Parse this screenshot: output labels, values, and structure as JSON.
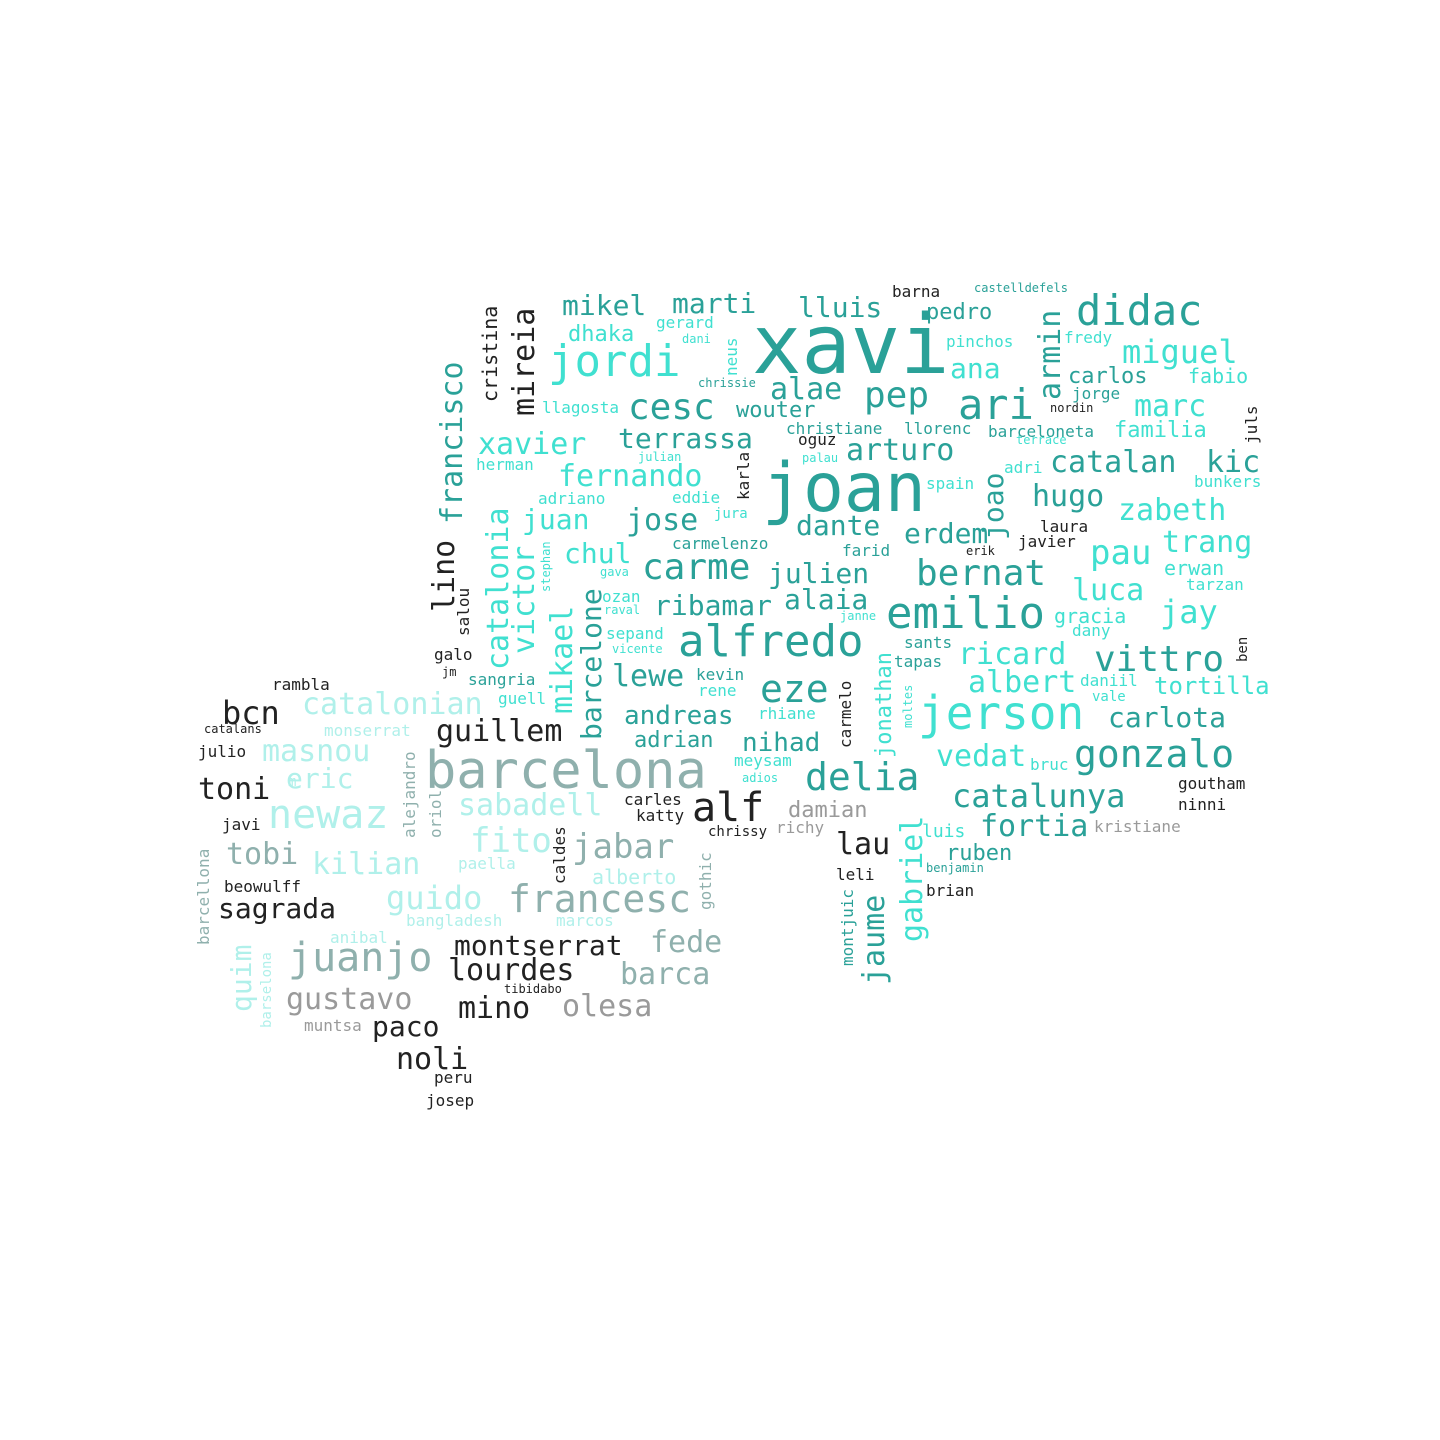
{
  "palette": {
    "teal": "#2aa198",
    "turquoise": "#40e0d0",
    "light_cyan": "#b0f0ea",
    "grey_teal": "#8fb0ad",
    "grey": "#9a9a9a",
    "dark": "#222222"
  },
  "words": [
    {
      "text": "xavi",
      "color": "#2aa198",
      "weight": "big"
    },
    {
      "text": "joan",
      "color": "#2aa198",
      "weight": "big"
    },
    {
      "text": "barcelona",
      "color": "#8fb0ad",
      "weight": "big"
    },
    {
      "text": "jerson",
      "color": "#40e0d0"
    },
    {
      "text": "alfredo",
      "color": "#2aa198"
    },
    {
      "text": "emilio",
      "color": "#2aa198"
    },
    {
      "text": "jordi",
      "color": "#40e0d0"
    },
    {
      "text": "didac",
      "color": "#2aa198"
    },
    {
      "text": "ari",
      "color": "#2aa198"
    },
    {
      "text": "newaz",
      "color": "#b0f0ea"
    },
    {
      "text": "juanjo",
      "color": "#8fb0ad"
    },
    {
      "text": "francesc",
      "color": "#8fb0ad"
    },
    {
      "text": "gonzalo",
      "color": "#2aa198"
    },
    {
      "text": "delia",
      "color": "#2aa198"
    },
    {
      "text": "alf",
      "color": "#222222"
    },
    {
      "text": "eze",
      "color": "#2aa198"
    },
    {
      "text": "vittro",
      "color": "#2aa198"
    },
    {
      "text": "bernat",
      "color": "#2aa198"
    },
    {
      "text": "carme",
      "color": "#2aa198"
    },
    {
      "text": "cesc",
      "color": "#2aa198"
    },
    {
      "text": "pep",
      "color": "#2aa198"
    },
    {
      "text": "catalunya",
      "color": "#2aa198"
    },
    {
      "text": "jabar",
      "color": "#8fb0ad"
    },
    {
      "text": "fito",
      "color": "#b0f0ea"
    },
    {
      "text": "guido",
      "color": "#b0f0ea"
    },
    {
      "text": "kilian",
      "color": "#b0f0ea"
    },
    {
      "text": "tobi",
      "color": "#8fb0ad"
    },
    {
      "text": "gustavo",
      "color": "#9a9a9a"
    },
    {
      "text": "mino",
      "color": "#222222"
    },
    {
      "text": "olesa",
      "color": "#9a9a9a"
    },
    {
      "text": "noli",
      "color": "#222222"
    },
    {
      "text": "lourdes",
      "color": "#222222"
    },
    {
      "text": "barca",
      "color": "#8fb0ad"
    },
    {
      "text": "fede",
      "color": "#8fb0ad"
    },
    {
      "text": "montserrat",
      "color": "#222222"
    },
    {
      "text": "sagrada",
      "color": "#222222"
    },
    {
      "text": "paco",
      "color": "#222222"
    },
    {
      "text": "quim",
      "color": "#b0f0ea",
      "vertical": true
    },
    {
      "text": "sabadell",
      "color": "#b0f0ea"
    },
    {
      "text": "eric",
      "color": "#b0f0ea"
    },
    {
      "text": "masnou",
      "color": "#b0f0ea"
    },
    {
      "text": "catalonian",
      "color": "#b0f0ea"
    },
    {
      "text": "guillem",
      "color": "#222222"
    },
    {
      "text": "bcn",
      "color": "#222222"
    },
    {
      "text": "toni",
      "color": "#222222"
    },
    {
      "text": "fernando",
      "color": "#40e0d0"
    },
    {
      "text": "xavier",
      "color": "#40e0d0"
    },
    {
      "text": "terrassa",
      "color": "#2aa198"
    },
    {
      "text": "mikel",
      "color": "#2aa198"
    },
    {
      "text": "marti",
      "color": "#2aa198"
    },
    {
      "text": "lluis",
      "color": "#2aa198"
    },
    {
      "text": "jose",
      "color": "#2aa198"
    },
    {
      "text": "juan",
      "color": "#40e0d0"
    },
    {
      "text": "chul",
      "color": "#40e0d0"
    },
    {
      "text": "julien",
      "color": "#2aa198"
    },
    {
      "text": "dante",
      "color": "#2aa198"
    },
    {
      "text": "erdem",
      "color": "#2aa198"
    },
    {
      "text": "arturo",
      "color": "#2aa198"
    },
    {
      "text": "alae",
      "color": "#2aa198"
    },
    {
      "text": "ribamar",
      "color": "#2aa198"
    },
    {
      "text": "alaia",
      "color": "#2aa198"
    },
    {
      "text": "lewe",
      "color": "#2aa198"
    },
    {
      "text": "andreas",
      "color": "#2aa198"
    },
    {
      "text": "nihad",
      "color": "#2aa198"
    },
    {
      "text": "adrian",
      "color": "#2aa198"
    },
    {
      "text": "miguel",
      "color": "#40e0d0"
    },
    {
      "text": "marc",
      "color": "#40e0d0"
    },
    {
      "text": "catalan",
      "color": "#2aa198"
    },
    {
      "text": "hugo",
      "color": "#2aa198"
    },
    {
      "text": "zabeth",
      "color": "#40e0d0"
    },
    {
      "text": "pau",
      "color": "#40e0d0"
    },
    {
      "text": "trang",
      "color": "#40e0d0"
    },
    {
      "text": "kic",
      "color": "#2aa198"
    },
    {
      "text": "luca",
      "color": "#40e0d0"
    },
    {
      "text": "jay",
      "color": "#40e0d0"
    },
    {
      "text": "ricard",
      "color": "#40e0d0"
    },
    {
      "text": "albert",
      "color": "#40e0d0"
    },
    {
      "text": "carlota",
      "color": "#2aa198"
    },
    {
      "text": "tortilla",
      "color": "#40e0d0"
    },
    {
      "text": "vedat",
      "color": "#40e0d0"
    },
    {
      "text": "fortia",
      "color": "#2aa198"
    },
    {
      "text": "damian",
      "color": "#9a9a9a"
    },
    {
      "text": "lau",
      "color": "#222222"
    },
    {
      "text": "ruben",
      "color": "#2aa198"
    },
    {
      "text": "ana",
      "color": "#40e0d0"
    },
    {
      "text": "pedro",
      "color": "#2aa198"
    },
    {
      "text": "carlos",
      "color": "#2aa198"
    },
    {
      "text": "fabio",
      "color": "#40e0d0"
    },
    {
      "text": "familia",
      "color": "#40e0d0"
    },
    {
      "text": "wouter",
      "color": "#2aa198"
    },
    {
      "text": "dhaka",
      "color": "#40e0d0"
    },
    {
      "text": "llagosta",
      "color": "#40e0d0"
    },
    {
      "text": "herman",
      "color": "#40e0d0"
    },
    {
      "text": "adriano",
      "color": "#40e0d0"
    },
    {
      "text": "eddie",
      "color": "#40e0d0"
    },
    {
      "text": "jura",
      "color": "#40e0d0"
    },
    {
      "text": "carmelenzo",
      "color": "#2aa198"
    },
    {
      "text": "farid",
      "color": "#2aa198"
    },
    {
      "text": "javier",
      "color": "#222222"
    },
    {
      "text": "laura",
      "color": "#222222"
    },
    {
      "text": "erwan",
      "color": "#40e0d0"
    },
    {
      "text": "tarzan",
      "color": "#40e0d0"
    },
    {
      "text": "gracia",
      "color": "#40e0d0"
    },
    {
      "text": "dany",
      "color": "#40e0d0"
    },
    {
      "text": "daniil",
      "color": "#40e0d0"
    },
    {
      "text": "vale",
      "color": "#40e0d0"
    },
    {
      "text": "sants",
      "color": "#2aa198"
    },
    {
      "text": "tapas",
      "color": "#2aa198"
    },
    {
      "text": "kevin",
      "color": "#2aa198"
    },
    {
      "text": "rene",
      "color": "#40e0d0"
    },
    {
      "text": "rhiane",
      "color": "#40e0d0"
    },
    {
      "text": "sangria",
      "color": "#2aa198"
    },
    {
      "text": "guell",
      "color": "#40e0d0"
    },
    {
      "text": "galo",
      "color": "#222222"
    },
    {
      "text": "jm",
      "color": "#222222"
    },
    {
      "text": "sepand",
      "color": "#40e0d0"
    },
    {
      "text": "vicente",
      "color": "#40e0d0"
    },
    {
      "text": "ozan",
      "color": "#40e0d0"
    },
    {
      "text": "raval",
      "color": "#40e0d0"
    },
    {
      "text": "gava",
      "color": "#40e0d0"
    },
    {
      "text": "meysam",
      "color": "#40e0d0"
    },
    {
      "text": "adios",
      "color": "#40e0d0"
    },
    {
      "text": "carles",
      "color": "#222222"
    },
    {
      "text": "katty",
      "color": "#222222"
    },
    {
      "text": "chrissy",
      "color": "#222222"
    },
    {
      "text": "richy",
      "color": "#9a9a9a"
    },
    {
      "text": "bruc",
      "color": "#40e0d0"
    },
    {
      "text": "luis",
      "color": "#40e0d0"
    },
    {
      "text": "benjamin",
      "color": "#2aa198"
    },
    {
      "text": "brian",
      "color": "#222222"
    },
    {
      "text": "leli",
      "color": "#222222"
    },
    {
      "text": "goutham",
      "color": "#222222"
    },
    {
      "text": "ninni",
      "color": "#222222"
    },
    {
      "text": "kristiane",
      "color": "#9a9a9a"
    },
    {
      "text": "barna",
      "color": "#222222"
    },
    {
      "text": "castelldefels",
      "color": "#2aa198"
    },
    {
      "text": "pinchos",
      "color": "#40e0d0"
    },
    {
      "text": "fredy",
      "color": "#40e0d0"
    },
    {
      "text": "jorge",
      "color": "#2aa198"
    },
    {
      "text": "nordin",
      "color": "#222222"
    },
    {
      "text": "barceloneta",
      "color": "#2aa198"
    },
    {
      "text": "terrace",
      "color": "#40e0d0"
    },
    {
      "text": "adri",
      "color": "#40e0d0"
    },
    {
      "text": "spain",
      "color": "#40e0d0"
    },
    {
      "text": "bunkers",
      "color": "#40e0d0"
    },
    {
      "text": "christiane",
      "color": "#2aa198"
    },
    {
      "text": "llorenc",
      "color": "#2aa198"
    },
    {
      "text": "oguz",
      "color": "#222222"
    },
    {
      "text": "palau",
      "color": "#40e0d0"
    },
    {
      "text": "gerard",
      "color": "#40e0d0"
    },
    {
      "text": "dani",
      "color": "#40e0d0"
    },
    {
      "text": "chrissie",
      "color": "#2aa198"
    },
    {
      "text": "julian",
      "color": "#40e0d0"
    },
    {
      "text": "erik",
      "color": "#222222"
    },
    {
      "text": "janne",
      "color": "#40e0d0"
    },
    {
      "text": "ben",
      "color": "#222222",
      "vertical": true
    },
    {
      "text": "juls",
      "color": "#222222",
      "vertical": true
    },
    {
      "text": "rambla",
      "color": "#222222"
    },
    {
      "text": "catalans",
      "color": "#222222"
    },
    {
      "text": "monserrat",
      "color": "#b0f0ea"
    },
    {
      "text": "julio",
      "color": "#222222"
    },
    {
      "text": "javi",
      "color": "#222222"
    },
    {
      "text": "beowulff",
      "color": "#222222"
    },
    {
      "text": "anibal",
      "color": "#b0f0ea"
    },
    {
      "text": "muntsa",
      "color": "#9a9a9a"
    },
    {
      "text": "bangladesh",
      "color": "#b0f0ea"
    },
    {
      "text": "marcos",
      "color": "#b0f0ea"
    },
    {
      "text": "paella",
      "color": "#b0f0ea"
    },
    {
      "text": "alberto",
      "color": "#b0f0ea"
    },
    {
      "text": "tibidabo",
      "color": "#222222"
    },
    {
      "text": "peru",
      "color": "#222222"
    },
    {
      "text": "josep",
      "color": "#222222"
    },
    {
      "text": "francisco",
      "color": "#2aa198",
      "vertical": true
    },
    {
      "text": "cristina",
      "color": "#222222",
      "vertical": true
    },
    {
      "text": "mireia",
      "color": "#222222",
      "vertical": true
    },
    {
      "text": "catalonia",
      "color": "#40e0d0",
      "vertical": true
    },
    {
      "text": "victor",
      "color": "#40e0d0",
      "vertical": true
    },
    {
      "text": "mikael",
      "color": "#40e0d0",
      "vertical": true
    },
    {
      "text": "barcelone",
      "color": "#2aa198",
      "vertical": true
    },
    {
      "text": "lino",
      "color": "#222222",
      "vertical": true
    },
    {
      "text": "salou",
      "color": "#222222",
      "vertical": true
    },
    {
      "text": "stephan",
      "color": "#40e0d0",
      "vertical": true
    },
    {
      "text": "neus",
      "color": "#40e0d0",
      "vertical": true
    },
    {
      "text": "karla",
      "color": "#222222",
      "vertical": true
    },
    {
      "text": "armin",
      "color": "#2aa198",
      "vertical": true
    },
    {
      "text": "joao",
      "color": "#2aa198",
      "vertical": true
    },
    {
      "text": "jonathan",
      "color": "#40e0d0",
      "vertical": true
    },
    {
      "text": "carmelo",
      "color": "#222222",
      "vertical": true
    },
    {
      "text": "moltes",
      "color": "#40e0d0",
      "vertical": true
    },
    {
      "text": "gabriel",
      "color": "#40e0d0",
      "vertical": true
    },
    {
      "text": "jaume",
      "color": "#2aa198",
      "vertical": true
    },
    {
      "text": "montjuic",
      "color": "#2aa198",
      "vertical": true
    },
    {
      "text": "alejandro",
      "color": "#8fb0ad",
      "vertical": true
    },
    {
      "text": "oriol",
      "color": "#8fb0ad",
      "vertical": true
    },
    {
      "text": "caldes",
      "color": "#222222",
      "vertical": true
    },
    {
      "text": "gothic",
      "color": "#8fb0ad",
      "vertical": true
    },
    {
      "text": "barcellona",
      "color": "#8fb0ad",
      "vertical": true
    },
    {
      "text": "barselona",
      "color": "#b0f0ea",
      "vertical": true
    },
    {
      "text": "m",
      "color": "#b0f0ea"
    }
  ]
}
